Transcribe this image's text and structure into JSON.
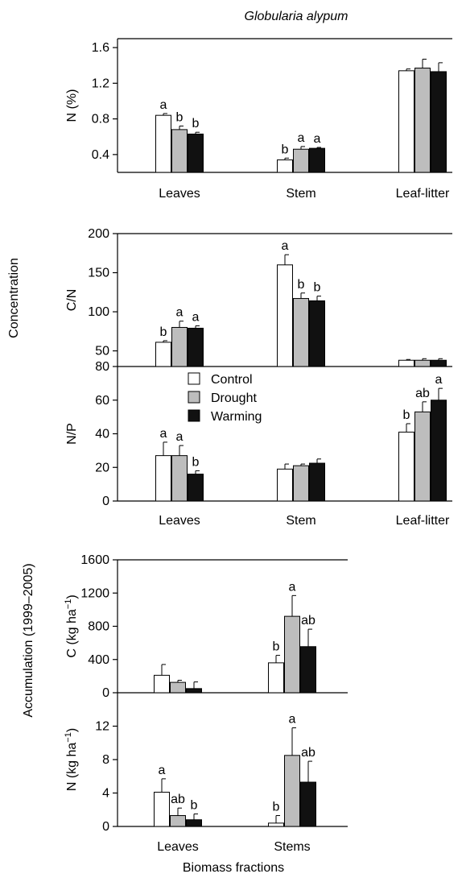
{
  "figure": {
    "title": "Globularia alypum",
    "group_label_concentration": "Concentration",
    "group_label_accumulation": "Accumulation  (1999–2005)",
    "xlabel": "Biomass fractions",
    "legend": [
      "Control",
      "Drought",
      "Warming"
    ],
    "colors": {
      "Control": "#ffffff",
      "Drought": "#bdbdbd",
      "Warming": "#111111"
    }
  },
  "chart_data": [
    {
      "id": "n_pct",
      "type": "bar",
      "ylabel": "N (%)",
      "ylim": [
        0.2,
        1.7
      ],
      "yticks": [
        "0.4",
        "0.8",
        "1.2",
        "1.6"
      ],
      "categories": [
        "Leaves",
        "Stem",
        "Leaf-litter"
      ],
      "show_xticklabels": true,
      "series": [
        {
          "name": "Control",
          "values": [
            0.84,
            0.34,
            1.34
          ],
          "errors": [
            0.02,
            0.02,
            0.02
          ],
          "letters": [
            "a",
            "b",
            ""
          ]
        },
        {
          "name": "Drought",
          "values": [
            0.68,
            0.46,
            1.37
          ],
          "errors": [
            0.04,
            0.03,
            0.1
          ],
          "letters": [
            "b",
            "a",
            ""
          ]
        },
        {
          "name": "Warming",
          "values": [
            0.63,
            0.47,
            1.33
          ],
          "errors": [
            0.02,
            0.01,
            0.1
          ],
          "letters": [
            "b",
            "a",
            ""
          ]
        }
      ]
    },
    {
      "id": "c_n",
      "type": "bar",
      "ylabel": "C/N",
      "ylim": [
        30,
        200
      ],
      "yticks": [
        "50",
        "100",
        "150",
        "200"
      ],
      "categories": [
        "Leaves",
        "Stem",
        "Leaf-litter"
      ],
      "show_xticklabels": false,
      "series": [
        {
          "name": "Control",
          "values": [
            61,
            160,
            38
          ],
          "errors": [
            2,
            13,
            1
          ],
          "letters": [
            "b",
            "a",
            ""
          ]
        },
        {
          "name": "Drought",
          "values": [
            80,
            117,
            38
          ],
          "errors": [
            8,
            7,
            2
          ],
          "letters": [
            "a",
            "b",
            ""
          ]
        },
        {
          "name": "Warming",
          "values": [
            79,
            114,
            38
          ],
          "errors": [
            3,
            6,
            2
          ],
          "letters": [
            "a",
            "b",
            ""
          ]
        }
      ]
    },
    {
      "id": "n_p",
      "type": "bar",
      "ylabel": "N/P",
      "ylim": [
        0,
        80
      ],
      "yticks": [
        "0",
        "20",
        "40",
        "60",
        "80"
      ],
      "categories": [
        "Leaves",
        "Stem",
        "Leaf-litter"
      ],
      "show_xticklabels": true,
      "series": [
        {
          "name": "Control",
          "values": [
            27,
            19,
            41
          ],
          "errors": [
            8,
            3,
            5
          ],
          "letters": [
            "a",
            "",
            "b"
          ]
        },
        {
          "name": "Drought",
          "values": [
            27,
            21,
            53
          ],
          "errors": [
            6,
            1,
            6
          ],
          "letters": [
            "a",
            "",
            "ab"
          ]
        },
        {
          "name": "Warming",
          "values": [
            16,
            22.5,
            60
          ],
          "errors": [
            2,
            2.5,
            7
          ],
          "letters": [
            "b",
            "",
            "a"
          ]
        }
      ]
    },
    {
      "id": "c_acc",
      "type": "bar",
      "ylabel": "C (kg ha−1)",
      "ylim": [
        0,
        1600
      ],
      "yticks": [
        "0",
        "400",
        "800",
        "1200",
        "1600"
      ],
      "categories": [
        "Leaves",
        "Stems"
      ],
      "show_xticklabels": false,
      "series": [
        {
          "name": "Control",
          "values": [
            210,
            360
          ],
          "errors": [
            130,
            90
          ],
          "letters": [
            "",
            "b"
          ]
        },
        {
          "name": "Drought",
          "values": [
            125,
            920
          ],
          "errors": [
            25,
            250
          ],
          "letters": [
            "",
            "a"
          ]
        },
        {
          "name": "Warming",
          "values": [
            50,
            555
          ],
          "errors": [
            80,
            210
          ],
          "letters": [
            "",
            "ab"
          ]
        }
      ]
    },
    {
      "id": "n_acc",
      "type": "bar",
      "ylabel": "N (kg ha−1)",
      "ylim": [
        0,
        16
      ],
      "yticks": [
        "0",
        "4",
        "8",
        "12"
      ],
      "categories": [
        "Leaves",
        "Stems"
      ],
      "show_xticklabels": true,
      "series": [
        {
          "name": "Control",
          "values": [
            4.1,
            0.4
          ],
          "errors": [
            1.6,
            0.9
          ],
          "letters": [
            "a",
            "b"
          ]
        },
        {
          "name": "Drought",
          "values": [
            1.3,
            8.5
          ],
          "errors": [
            0.9,
            3.3
          ],
          "letters": [
            "ab",
            "a"
          ]
        },
        {
          "name": "Warming",
          "values": [
            0.8,
            5.3
          ],
          "errors": [
            0.7,
            2.5
          ],
          "letters": [
            "b",
            "ab"
          ]
        }
      ]
    }
  ]
}
